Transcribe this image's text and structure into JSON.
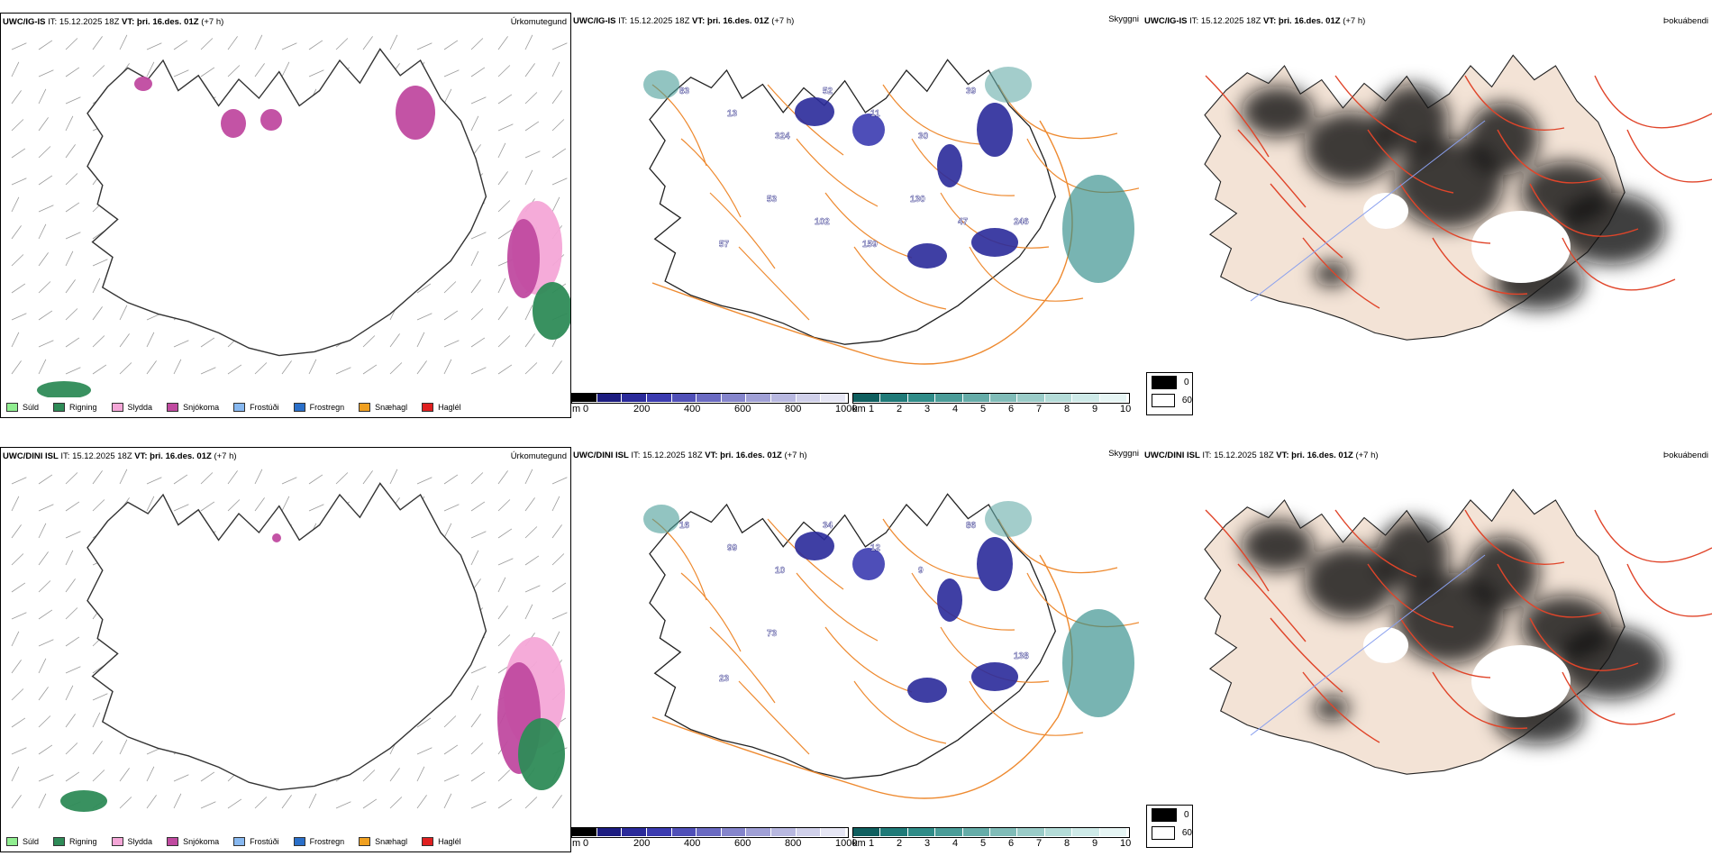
{
  "rows": [
    {
      "model": "UWC/IG-IS",
      "it_label": "IT:",
      "it_value": "15.12.2025 18Z",
      "vt_label": "VT:",
      "vt_value": "þri. 16.des. 01Z",
      "lead": "(+7 h)",
      "precip_title": "Úrkomutegund",
      "cloud_title": "Skyggni",
      "fog_title": "Þokuábendi",
      "cloud_numbers": [
        "83",
        "13",
        "324",
        "52",
        "11",
        "30",
        "39",
        "246",
        "57",
        "53",
        "102",
        "159",
        "130",
        "47"
      ]
    },
    {
      "model": "UWC/DINI ISL",
      "it_label": "IT:",
      "it_value": "15.12.2025 18Z",
      "vt_label": "VT:",
      "vt_value": "þri. 16.des. 01Z",
      "lead": "(+7 h)",
      "precip_title": "Úrkomutegund",
      "cloud_title": "Skyggni",
      "fog_title": "Þokuábendi",
      "cloud_numbers": [
        "16",
        "99",
        "10",
        "34",
        "12",
        "9",
        "86",
        "138",
        "23",
        "73"
      ]
    }
  ],
  "precip_legend": [
    {
      "label": "Súld",
      "color": "#90ee90"
    },
    {
      "label": "Rigning",
      "color": "#2e8b57"
    },
    {
      "label": "Slydda",
      "color": "#f4a6d7"
    },
    {
      "label": "Snjókoma",
      "color": "#c04aa0"
    },
    {
      "label": "Frostúði",
      "color": "#87b8f0"
    },
    {
      "label": "Frostregn",
      "color": "#2a6fc9"
    },
    {
      "label": "Snæhagl",
      "color": "#f0a020"
    },
    {
      "label": "Haglél",
      "color": "#e02020"
    }
  ],
  "cloud_base_bar": {
    "unit": "m",
    "ticks": [
      "0",
      "200",
      "400",
      "600",
      "800",
      "1000"
    ],
    "colors": [
      "#000000",
      "#1c1c80",
      "#2a2a9a",
      "#3b3bb0",
      "#5050b8",
      "#6a6ac2",
      "#8585cc",
      "#a0a0d6",
      "#b8b8e0",
      "#d0d0ea",
      "#e6e6f4"
    ]
  },
  "visibility_bar": {
    "unit": "km",
    "ticks": [
      "1",
      "2",
      "3",
      "4",
      "5",
      "6",
      "7",
      "8",
      "9",
      "10"
    ],
    "colors": [
      "#0f5f5f",
      "#1f7a78",
      "#2f8c88",
      "#4a9c98",
      "#65aca8",
      "#80bcb8",
      "#9accc8",
      "#b4dcd8",
      "#ceeae8",
      "#e6f5f4"
    ]
  },
  "fog_legend": [
    {
      "label": "0",
      "color": "#000000"
    },
    {
      "label": "60",
      "color": "#ffffff"
    }
  ]
}
